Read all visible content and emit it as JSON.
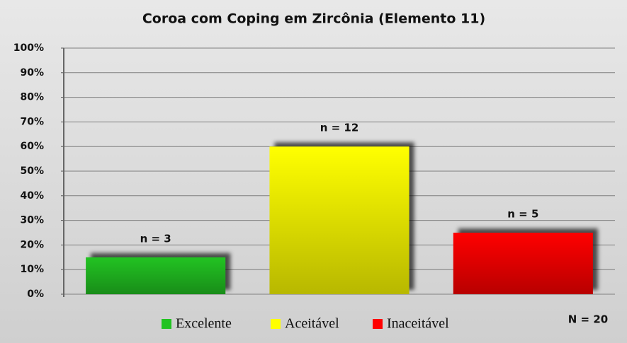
{
  "chart_data": {
    "type": "bar",
    "title": "Coroa com Coping em Zircônia (Elemento 11)",
    "categories": [
      null
    ],
    "series": [
      {
        "name": "Excelente",
        "color": "#22c322",
        "values": [
          15
        ],
        "value_labels": [
          "n = 3"
        ]
      },
      {
        "name": "Aceitável",
        "color": "#ffff00",
        "values": [
          60
        ],
        "value_labels": [
          "n = 12"
        ]
      },
      {
        "name": "Inaceitável",
        "color": "#ff0000",
        "values": [
          25
        ],
        "value_labels": [
          "n = 5"
        ]
      }
    ],
    "ylim": [
      0,
      100
    ],
    "yticks": [
      {
        "value": 0,
        "label": "0%"
      },
      {
        "value": 10,
        "label": "10%"
      },
      {
        "value": 20,
        "label": "20%"
      },
      {
        "value": 30,
        "label": "30%"
      },
      {
        "value": 40,
        "label": "40%"
      },
      {
        "value": 50,
        "label": "50%"
      },
      {
        "value": 60,
        "label": "60%"
      },
      {
        "value": 70,
        "label": "70%"
      },
      {
        "value": 80,
        "label": "80%"
      },
      {
        "value": 90,
        "label": "90%"
      },
      {
        "value": 100,
        "label": "100%"
      }
    ],
    "grid": true,
    "legend": "bottom",
    "annotation": "N = 20"
  }
}
